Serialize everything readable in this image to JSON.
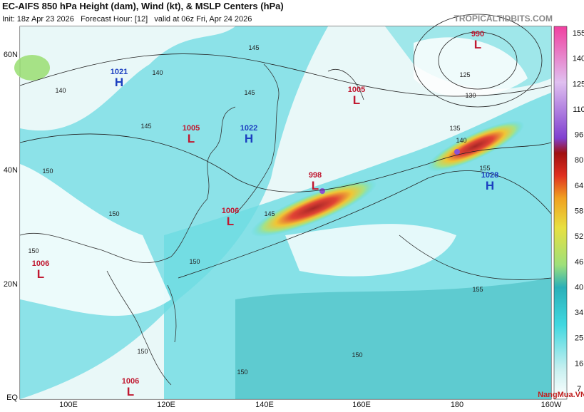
{
  "header": {
    "title": "EC-AIFS 850 hPa Height (dam), Wind (kt), & MSLP Centers (hPa)",
    "subtitle": "Init: 18z Apr 23 2026   Forecast Hour: [12]   valid at 06z Fri, Apr 24 2026",
    "site": "TROPICALTIDBITS.COM"
  },
  "latitude_labels": [
    "60N",
    "40N",
    "20N",
    "EQ"
  ],
  "longitude_labels": [
    "100E",
    "120E",
    "140E",
    "160E",
    "180",
    "160W"
  ],
  "pressure_centers": [
    {
      "value": "1021",
      "type": "H"
    },
    {
      "value": "1005",
      "type": "L"
    },
    {
      "value": "1022",
      "type": "H"
    },
    {
      "value": "998",
      "type": "L"
    },
    {
      "value": "1006",
      "type": "L"
    },
    {
      "value": "1006",
      "type": "L"
    },
    {
      "value": "1006",
      "type": "L"
    },
    {
      "value": "1005",
      "type": "L"
    },
    {
      "value": "990",
      "type": "L"
    },
    {
      "value": "1028",
      "type": "H"
    }
  ],
  "contour_labels": [
    "145",
    "140",
    "145",
    "145",
    "140",
    "150",
    "150",
    "145",
    "150",
    "150",
    "150",
    "150",
    "125",
    "130",
    "135",
    "140",
    "155",
    "155",
    "150"
  ],
  "colorbar": {
    "labels": [
      "155",
      "140",
      "125",
      "110",
      "96",
      "80",
      "64",
      "58",
      "52",
      "46",
      "40",
      "34",
      "25",
      "16",
      "7"
    ]
  },
  "watermark": "NangMua.VN"
}
